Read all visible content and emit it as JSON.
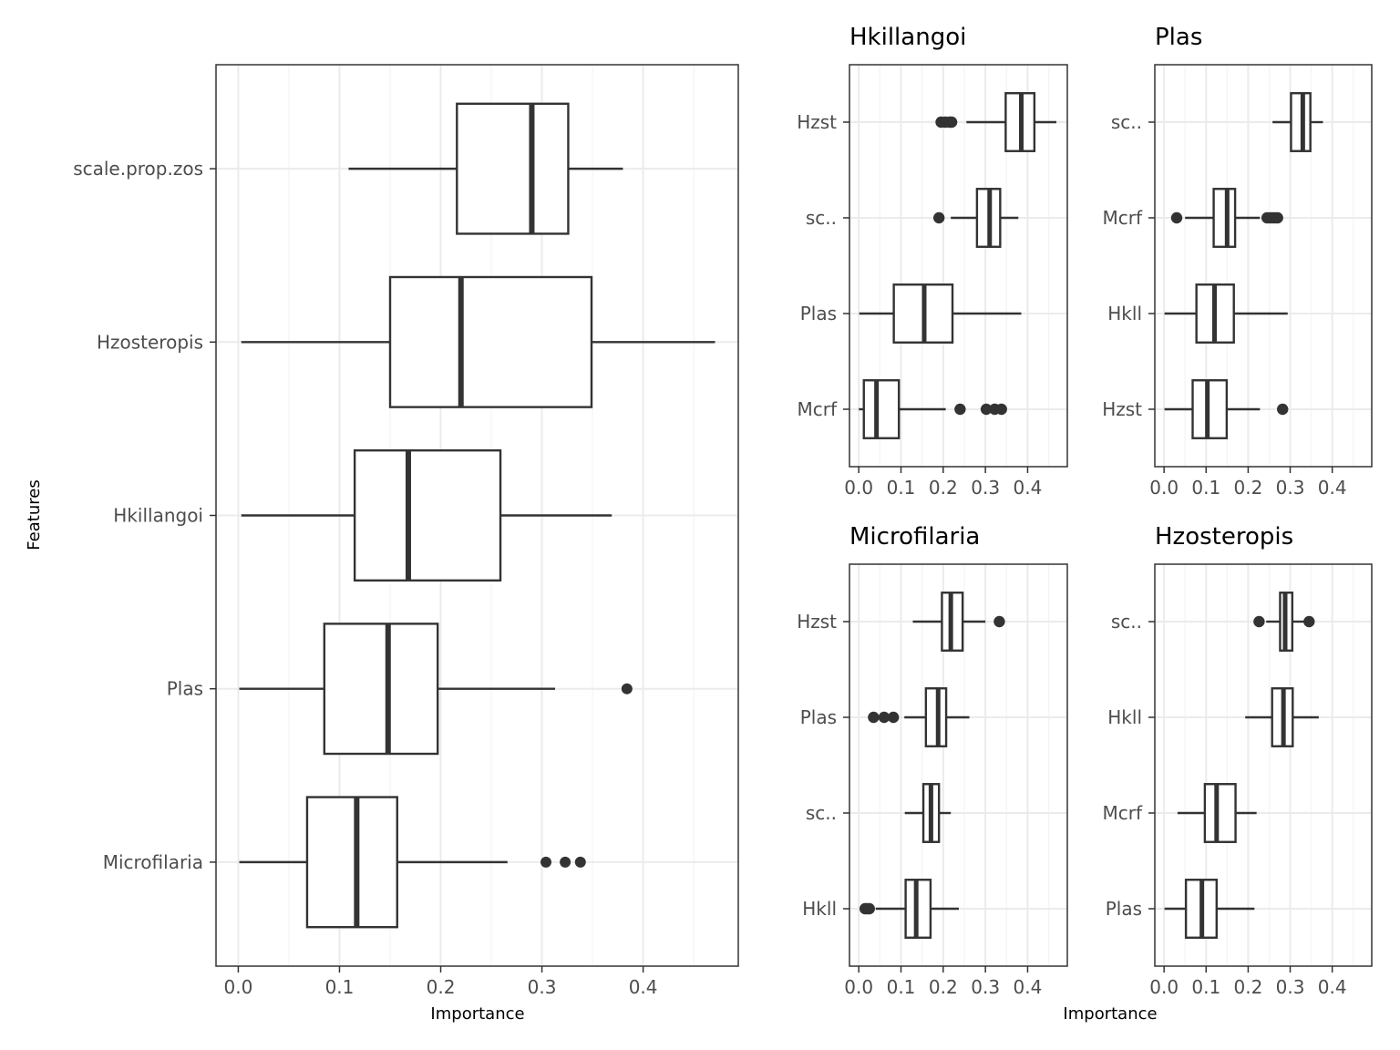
{
  "chart_data": {
    "type": "box",
    "xlabel_left": "Importance",
    "xlabel_right": "Importance",
    "ylabel": "Features",
    "panels": [
      {
        "id": "main",
        "title": "",
        "xlim": [
          -0.022,
          0.494
        ],
        "xticks": [
          0,
          0.1,
          0.2,
          0.3,
          0.4
        ],
        "xtick_labels": [
          "0.0",
          "0.1",
          "0.2",
          "0.3",
          "0.4"
        ],
        "categories": [
          "scale.prop.zos",
          "Hzosteropis",
          "Hkillangoi",
          "Plas",
          "Microfilaria"
        ],
        "boxes": [
          {
            "label": "scale.prop.zos",
            "min": 0.109,
            "q1": 0.216,
            "median": 0.29,
            "q3": 0.326,
            "max": 0.38,
            "outliers": []
          },
          {
            "label": "Hzosteropis",
            "min": 0.003,
            "q1": 0.15,
            "median": 0.22,
            "q3": 0.349,
            "max": 0.471,
            "outliers": []
          },
          {
            "label": "Hkillangoi",
            "min": 0.003,
            "q1": 0.115,
            "median": 0.168,
            "q3": 0.259,
            "max": 0.369,
            "outliers": []
          },
          {
            "label": "Plas",
            "min": 0.001,
            "q1": 0.085,
            "median": 0.148,
            "q3": 0.197,
            "max": 0.313,
            "outliers": [
              0.384
            ]
          },
          {
            "label": "Microfilaria",
            "min": 0.001,
            "q1": 0.068,
            "median": 0.117,
            "q3": 0.157,
            "max": 0.266,
            "outliers": [
              0.304,
              0.323,
              0.338
            ]
          }
        ]
      },
      {
        "id": "hkillangoi",
        "title": "Hkillangoi",
        "xlim": [
          -0.022,
          0.494
        ],
        "xticks": [
          0,
          0.1,
          0.2,
          0.3,
          0.4
        ],
        "xtick_labels": [
          "0.0",
          "0.1",
          "0.2",
          "0.3",
          "0.4"
        ],
        "categories": [
          "Hzst",
          "sc..",
          "Plas",
          "Mcrf"
        ],
        "boxes": [
          {
            "label": "Hzst",
            "min": 0.255,
            "q1": 0.348,
            "median": 0.385,
            "q3": 0.416,
            "max": 0.468,
            "outliers": [
              0.195,
              0.205,
              0.215,
              0.22
            ]
          },
          {
            "label": "sc..",
            "min": 0.218,
            "q1": 0.28,
            "median": 0.31,
            "q3": 0.335,
            "max": 0.378,
            "outliers": [
              0.19
            ]
          },
          {
            "label": "Plas",
            "min": 0.001,
            "q1": 0.083,
            "median": 0.155,
            "q3": 0.222,
            "max": 0.385,
            "outliers": []
          },
          {
            "label": "Mcrf",
            "min": 0.0,
            "q1": 0.012,
            "median": 0.042,
            "q3": 0.095,
            "max": 0.206,
            "outliers": [
              0.24,
              0.302,
              0.322,
              0.338
            ]
          }
        ]
      },
      {
        "id": "plas",
        "title": "Plas",
        "xlim": [
          -0.022,
          0.494
        ],
        "xticks": [
          0,
          0.1,
          0.2,
          0.3,
          0.4
        ],
        "xtick_labels": [
          "0.0",
          "0.1",
          "0.2",
          "0.3",
          "0.4"
        ],
        "categories": [
          "sc..",
          "Mcrf",
          "Hkll",
          "Hzst"
        ],
        "boxes": [
          {
            "label": "sc..",
            "min": 0.258,
            "q1": 0.302,
            "median": 0.33,
            "q3": 0.348,
            "max": 0.378,
            "outliers": []
          },
          {
            "label": "Mcrf",
            "min": 0.05,
            "q1": 0.118,
            "median": 0.15,
            "q3": 0.169,
            "max": 0.228,
            "outliers": [
              0.03,
              0.245,
              0.252,
              0.258,
              0.264,
              0.27
            ]
          },
          {
            "label": "Hkll",
            "min": 0.001,
            "q1": 0.077,
            "median": 0.12,
            "q3": 0.166,
            "max": 0.294,
            "outliers": []
          },
          {
            "label": "Hzst",
            "min": 0.001,
            "q1": 0.068,
            "median": 0.103,
            "q3": 0.149,
            "max": 0.228,
            "outliers": [
              0.282
            ]
          }
        ]
      },
      {
        "id": "microfilaria",
        "title": "Microfilaria",
        "xlim": [
          -0.022,
          0.494
        ],
        "xticks": [
          0,
          0.1,
          0.2,
          0.3,
          0.4
        ],
        "xtick_labels": [
          "0.0",
          "0.1",
          "0.2",
          "0.3",
          "0.4"
        ],
        "categories": [
          "Hzst",
          "Plas",
          "sc..",
          "Hkll"
        ],
        "boxes": [
          {
            "label": "Hzst",
            "min": 0.128,
            "q1": 0.197,
            "median": 0.218,
            "q3": 0.246,
            "max": 0.3,
            "outliers": [
              0.333
            ]
          },
          {
            "label": "Plas",
            "min": 0.108,
            "q1": 0.159,
            "median": 0.188,
            "q3": 0.207,
            "max": 0.262,
            "outliers": [
              0.035,
              0.06,
              0.082
            ]
          },
          {
            "label": "sc..",
            "min": 0.109,
            "q1": 0.153,
            "median": 0.171,
            "q3": 0.19,
            "max": 0.218,
            "outliers": []
          },
          {
            "label": "Hkll",
            "min": 0.04,
            "q1": 0.111,
            "median": 0.136,
            "q3": 0.17,
            "max": 0.237,
            "outliers": [
              0.015,
              0.02,
              0.025
            ]
          }
        ]
      },
      {
        "id": "hzosteropis",
        "title": "Hzosteropis",
        "xlim": [
          -0.022,
          0.494
        ],
        "xticks": [
          0,
          0.1,
          0.2,
          0.3,
          0.4
        ],
        "xtick_labels": [
          "0.0",
          "0.1",
          "0.2",
          "0.3",
          "0.4"
        ],
        "categories": [
          "sc..",
          "Hkll",
          "Mcrf",
          "Plas"
        ],
        "boxes": [
          {
            "label": "sc..",
            "min": 0.243,
            "q1": 0.276,
            "median": 0.288,
            "q3": 0.305,
            "max": 0.333,
            "outliers": [
              0.226,
              0.345
            ]
          },
          {
            "label": "Hkll",
            "min": 0.193,
            "q1": 0.257,
            "median": 0.284,
            "q3": 0.306,
            "max": 0.368,
            "outliers": []
          },
          {
            "label": "Mcrf",
            "min": 0.032,
            "q1": 0.097,
            "median": 0.125,
            "q3": 0.17,
            "max": 0.22,
            "outliers": []
          },
          {
            "label": "Plas",
            "min": 0.001,
            "q1": 0.052,
            "median": 0.09,
            "q3": 0.125,
            "max": 0.215,
            "outliers": []
          }
        ]
      }
    ]
  },
  "colors": {
    "box_stroke": "#333333",
    "grid_major": "#ebebeb",
    "grid_minor": "#f4f4f4",
    "panel_border": "#333333",
    "tick_text": "#4d4d4d",
    "title_text": "#000000"
  }
}
